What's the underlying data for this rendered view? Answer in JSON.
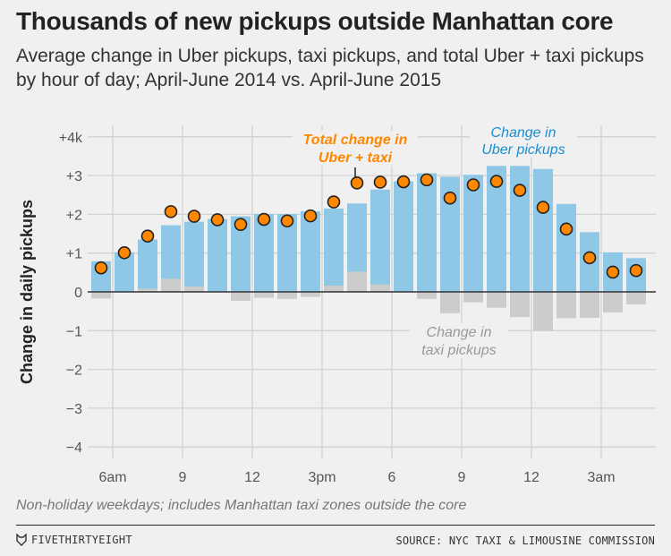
{
  "header": {
    "title": "Thousands of new pickups outside Manhattan core",
    "subtitle": "Average change in Uber pickups, taxi pickups, and total Uber + taxi pickups by hour of day; April-June 2014 vs. April-June 2015"
  },
  "footer": {
    "note": "Non-holiday weekdays; includes Manhattan taxi zones outside the core",
    "brand": "FIVETHIRTYEIGHT",
    "source": "SOURCE: NYC TAXI & LIMOUSINE COMMISSION"
  },
  "chart_data": {
    "type": "bar",
    "ylabel": "Change in daily pickups",
    "ylim": [
      -4,
      4
    ],
    "yticks": [
      {
        "v": 4,
        "label": "+4k"
      },
      {
        "v": 3,
        "label": "+3"
      },
      {
        "v": 2,
        "label": "+2"
      },
      {
        "v": 1,
        "label": "+1"
      },
      {
        "v": 0,
        "label": "0"
      },
      {
        "v": -1,
        "label": "−1"
      },
      {
        "v": -2,
        "label": "−2"
      },
      {
        "v": -3,
        "label": "−3"
      },
      {
        "v": -4,
        "label": "−4"
      }
    ],
    "categories": [
      "5am",
      "6am",
      "7am",
      "8am",
      "9am",
      "10am",
      "11am",
      "12pm",
      "1pm",
      "2pm",
      "3pm",
      "4pm",
      "5pm",
      "6pm",
      "7pm",
      "8pm",
      "9pm",
      "10pm",
      "11pm",
      "12am",
      "1am",
      "2am",
      "3am",
      "4am"
    ],
    "xticks": [
      {
        "index": 1,
        "label": "6am"
      },
      {
        "index": 4,
        "label": "9"
      },
      {
        "index": 7,
        "label": "12"
      },
      {
        "index": 10,
        "label": "3pm"
      },
      {
        "index": 13,
        "label": "6"
      },
      {
        "index": 16,
        "label": "9"
      },
      {
        "index": 19,
        "label": "12"
      },
      {
        "index": 22,
        "label": "3am"
      }
    ],
    "grid": true,
    "series": [
      {
        "name": "Change in Uber pickups",
        "kind": "bar",
        "color": "#8ec8e6",
        "values": [
          0.79,
          1.02,
          1.35,
          1.72,
          1.81,
          1.88,
          1.95,
          2.01,
          2.01,
          2.08,
          2.15,
          2.28,
          2.64,
          2.85,
          3.06,
          2.97,
          3.02,
          3.25,
          3.25,
          3.17,
          2.27,
          1.54,
          1.02,
          0.87
        ]
      },
      {
        "name": "Change in taxi pickups",
        "kind": "bar",
        "color": "#cccccc",
        "values": [
          -0.17,
          0,
          0.08,
          0.34,
          0.14,
          0,
          -0.23,
          -0.15,
          -0.18,
          -0.13,
          0.16,
          0.52,
          0.19,
          0,
          -0.18,
          -0.55,
          -0.27,
          -0.41,
          -0.65,
          -1.0,
          -0.68,
          -0.67,
          -0.53,
          -0.32
        ]
      },
      {
        "name": "Total change in Uber + taxi",
        "kind": "dot",
        "color": "#ff8700",
        "values": [
          0.62,
          1.01,
          1.44,
          2.07,
          1.95,
          1.86,
          1.74,
          1.87,
          1.83,
          1.96,
          2.32,
          2.81,
          2.83,
          2.84,
          2.89,
          2.42,
          2.76,
          2.85,
          2.62,
          2.18,
          1.62,
          0.88,
          0.51,
          0.55
        ]
      }
    ],
    "annotations": {
      "total": [
        "Total change in",
        "Uber + taxi"
      ],
      "uber": [
        "Change in",
        "Uber pickups"
      ],
      "taxi": [
        "Change in",
        "taxi pickups"
      ]
    }
  }
}
